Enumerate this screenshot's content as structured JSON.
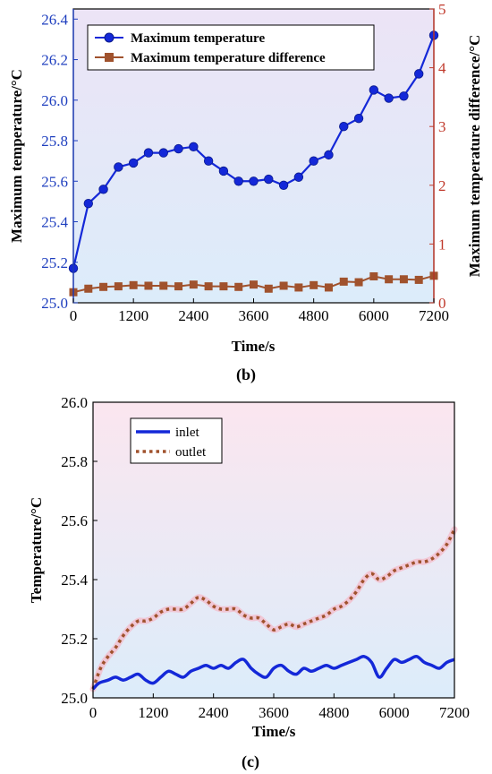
{
  "chart_data": [
    {
      "type": "line",
      "caption": "(b)",
      "xlabel": "Time/s",
      "ylabel_left": "Maximum temperature/°C",
      "ylabel_right": "Maximum temperature difference/°C",
      "xlim": [
        0,
        7200
      ],
      "xticks": [
        0,
        1200,
        2400,
        3600,
        4800,
        6000,
        7200
      ],
      "ylim_left": [
        25.0,
        26.45
      ],
      "yticks_left": [
        25.0,
        25.2,
        25.4,
        25.6,
        25.8,
        26.0,
        26.2,
        26.4
      ],
      "ylim_right": [
        0,
        5
      ],
      "yticks_right": [
        0,
        1,
        2,
        3,
        4,
        5
      ],
      "colors": {
        "left_axis": "#1f3fbf",
        "right_axis": "#c0392b",
        "bg_top": "#ece4f6",
        "bg_bottom": "#dcecfa"
      },
      "legend": {
        "position": "top-left"
      },
      "series": [
        {
          "name": "Maximum temperature",
          "axis": "left",
          "color": "#1428d8",
          "marker": "circle",
          "x": [
            0,
            300,
            600,
            900,
            1200,
            1500,
            1800,
            2100,
            2400,
            2700,
            3000,
            3300,
            3600,
            3900,
            4200,
            4500,
            4800,
            5100,
            5400,
            5700,
            6000,
            6300,
            6600,
            6900,
            7200
          ],
          "y": [
            25.17,
            25.49,
            25.56,
            25.67,
            25.69,
            25.74,
            25.74,
            25.76,
            25.77,
            25.7,
            25.65,
            25.6,
            25.6,
            25.61,
            25.58,
            25.62,
            25.7,
            25.73,
            25.87,
            25.91,
            26.05,
            26.01,
            26.02,
            26.13,
            26.32
          ]
        },
        {
          "name": "Maximum temperature difference",
          "axis": "right",
          "color": "#a0522d",
          "marker": "square",
          "x": [
            0,
            300,
            600,
            900,
            1200,
            1500,
            1800,
            2100,
            2400,
            2700,
            3000,
            3300,
            3600,
            3900,
            4200,
            4500,
            4800,
            5100,
            5400,
            5700,
            6000,
            6300,
            6600,
            6900,
            7200
          ],
          "y": [
            0.18,
            0.24,
            0.27,
            0.28,
            0.3,
            0.29,
            0.29,
            0.28,
            0.31,
            0.28,
            0.28,
            0.27,
            0.31,
            0.24,
            0.29,
            0.26,
            0.3,
            0.26,
            0.36,
            0.35,
            0.45,
            0.4,
            0.4,
            0.39,
            0.46
          ]
        }
      ]
    },
    {
      "type": "line",
      "caption": "(c)",
      "xlabel": "Time/s",
      "ylabel": "Temperature/°C",
      "xlim": [
        0,
        7200
      ],
      "xticks": [
        0,
        1200,
        2400,
        3600,
        4800,
        6000,
        7200
      ],
      "ylim": [
        25.0,
        26.0
      ],
      "yticks": [
        25.0,
        25.2,
        25.4,
        25.6,
        25.8,
        26.0
      ],
      "colors": {
        "bg_top": "#fbe6ef",
        "bg_bottom": "#dcecfa"
      },
      "legend": {
        "position": "top-left"
      },
      "series": [
        {
          "name": "inlet",
          "color": "#1428d8",
          "style": "solid",
          "x": [
            0,
            120,
            300,
            450,
            600,
            750,
            900,
            1050,
            1200,
            1350,
            1500,
            1650,
            1800,
            1950,
            2100,
            2250,
            2400,
            2550,
            2700,
            2850,
            3000,
            3150,
            3300,
            3450,
            3600,
            3750,
            3900,
            4050,
            4200,
            4350,
            4500,
            4650,
            4800,
            4950,
            5100,
            5250,
            5400,
            5550,
            5700,
            5850,
            6000,
            6150,
            6300,
            6450,
            6600,
            6750,
            6900,
            7050,
            7200
          ],
          "y": [
            25.03,
            25.05,
            25.06,
            25.07,
            25.06,
            25.07,
            25.08,
            25.06,
            25.05,
            25.07,
            25.09,
            25.08,
            25.07,
            25.09,
            25.1,
            25.11,
            25.1,
            25.11,
            25.1,
            25.12,
            25.13,
            25.1,
            25.08,
            25.07,
            25.1,
            25.11,
            25.09,
            25.08,
            25.1,
            25.09,
            25.1,
            25.11,
            25.1,
            25.11,
            25.12,
            25.13,
            25.14,
            25.12,
            25.07,
            25.1,
            25.13,
            25.12,
            25.13,
            25.14,
            25.12,
            25.11,
            25.1,
            25.12,
            25.13
          ]
        },
        {
          "name": "outlet",
          "color": "#a0522d",
          "style": "dotted",
          "x": [
            0,
            150,
            300,
            450,
            600,
            750,
            900,
            1050,
            1200,
            1350,
            1500,
            1650,
            1800,
            1950,
            2100,
            2250,
            2400,
            2550,
            2700,
            2850,
            3000,
            3150,
            3300,
            3450,
            3600,
            3750,
            3900,
            4050,
            4200,
            4350,
            4500,
            4650,
            4800,
            4950,
            5100,
            5250,
            5400,
            5550,
            5700,
            5850,
            6000,
            6150,
            6300,
            6450,
            6600,
            6750,
            6900,
            7050,
            7200
          ],
          "y": [
            25.03,
            25.1,
            25.14,
            25.17,
            25.21,
            25.24,
            25.26,
            25.26,
            25.27,
            25.29,
            25.3,
            25.3,
            25.3,
            25.32,
            25.34,
            25.33,
            25.31,
            25.3,
            25.3,
            25.3,
            25.28,
            25.27,
            25.27,
            25.25,
            25.23,
            25.24,
            25.25,
            25.24,
            25.25,
            25.26,
            25.27,
            25.28,
            25.3,
            25.31,
            25.33,
            25.36,
            25.4,
            25.42,
            25.4,
            25.41,
            25.43,
            25.44,
            25.45,
            25.46,
            25.46,
            25.47,
            25.49,
            25.52,
            25.57
          ]
        }
      ]
    }
  ]
}
